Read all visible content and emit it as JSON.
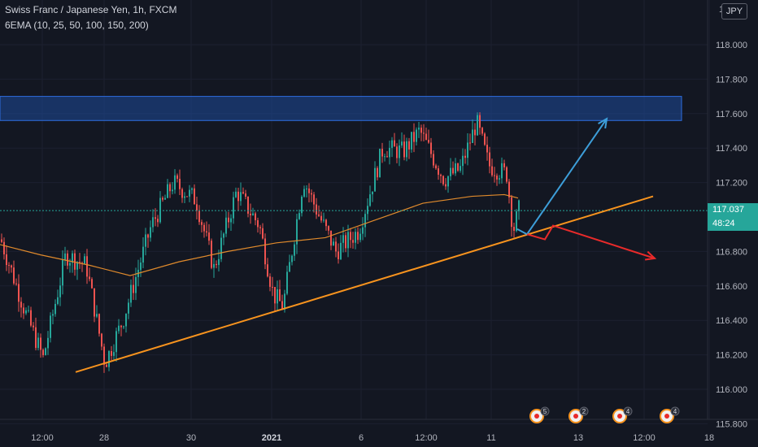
{
  "header": {
    "title": "Swiss Franc / Japanese Yen, 1h, FXCM",
    "indicator": "6EMA (10, 25, 50, 100, 150, 200)"
  },
  "currency_badge": "JPY",
  "last_price": {
    "price": "117.037",
    "countdown": "48:24",
    "color": "#26a69a"
  },
  "colors": {
    "background": "#131722",
    "bull": "#26a69a",
    "bear": "#ef5350",
    "ema": "#e08a2c",
    "trendline": "#f7931e",
    "zone": "#1e4a9a",
    "up_arrow": "#3d9ed9",
    "down_arrow": "#e82a2a"
  },
  "events": [
    {
      "badge": "5",
      "icon": "economic-event-icon"
    },
    {
      "badge": "2",
      "icon": "economic-event-icon"
    },
    {
      "badge": "4",
      "icon": "economic-event-icon"
    },
    {
      "badge": "4",
      "icon": "economic-event-icon"
    }
  ],
  "chart_data": {
    "type": "candlestick",
    "symbol": "CHFJPY",
    "timeframe": "1h",
    "y_axis": {
      "ticks": [
        "118.000",
        "117.800",
        "117.600",
        "117.400",
        "117.200",
        "116.800",
        "116.600",
        "116.400",
        "116.200",
        "116.000",
        "115.800"
      ],
      "ylim": [
        115.8,
        118.2
      ]
    },
    "x_axis": {
      "ticks": [
        "12:00",
        "28",
        "30",
        "2021",
        "6",
        "12:00",
        "11",
        "13",
        "12:00",
        "18"
      ]
    },
    "price_path": [
      [
        0,
        116.87
      ],
      [
        30,
        116.45
      ],
      [
        52,
        116.18
      ],
      [
        80,
        116.78
      ],
      [
        105,
        116.72
      ],
      [
        128,
        116.15
      ],
      [
        150,
        116.4
      ],
      [
        185,
        116.95
      ],
      [
        212,
        117.2
      ],
      [
        240,
        117.1
      ],
      [
        262,
        116.7
      ],
      [
        290,
        117.15
      ],
      [
        318,
        116.95
      ],
      [
        335,
        116.55
      ],
      [
        347,
        116.48
      ],
      [
        372,
        117.22
      ],
      [
        392,
        117.0
      ],
      [
        412,
        116.8
      ],
      [
        440,
        116.92
      ],
      [
        470,
        117.4
      ],
      [
        495,
        117.38
      ],
      [
        515,
        117.5
      ],
      [
        545,
        117.22
      ],
      [
        565,
        117.28
      ],
      [
        585,
        117.55
      ],
      [
        600,
        117.3
      ],
      [
        622,
        117.25
      ],
      [
        630,
        116.92
      ],
      [
        637,
        117.04
      ]
    ],
    "ema_line": [
      [
        0,
        116.84
      ],
      [
        50,
        116.78
      ],
      [
        110,
        116.72
      ],
      [
        160,
        116.66
      ],
      [
        220,
        116.74
      ],
      [
        280,
        116.8
      ],
      [
        340,
        116.85
      ],
      [
        400,
        116.88
      ],
      [
        460,
        116.98
      ],
      [
        520,
        117.08
      ],
      [
        580,
        117.12
      ],
      [
        620,
        117.13
      ],
      [
        637,
        117.11
      ]
    ],
    "annotations": {
      "resistance_zone": [
        117.56,
        117.7
      ],
      "trendline": [
        [
          93,
          116.1
        ],
        [
          803,
          117.12
        ]
      ],
      "bullish_path": [
        [
          636,
          116.93
        ],
        [
          648,
          116.9
        ],
        [
          746,
          117.57
        ]
      ],
      "bearish_path": [
        [
          648,
          116.9
        ],
        [
          670,
          116.87
        ],
        [
          680,
          116.95
        ],
        [
          805,
          116.76
        ]
      ]
    }
  }
}
